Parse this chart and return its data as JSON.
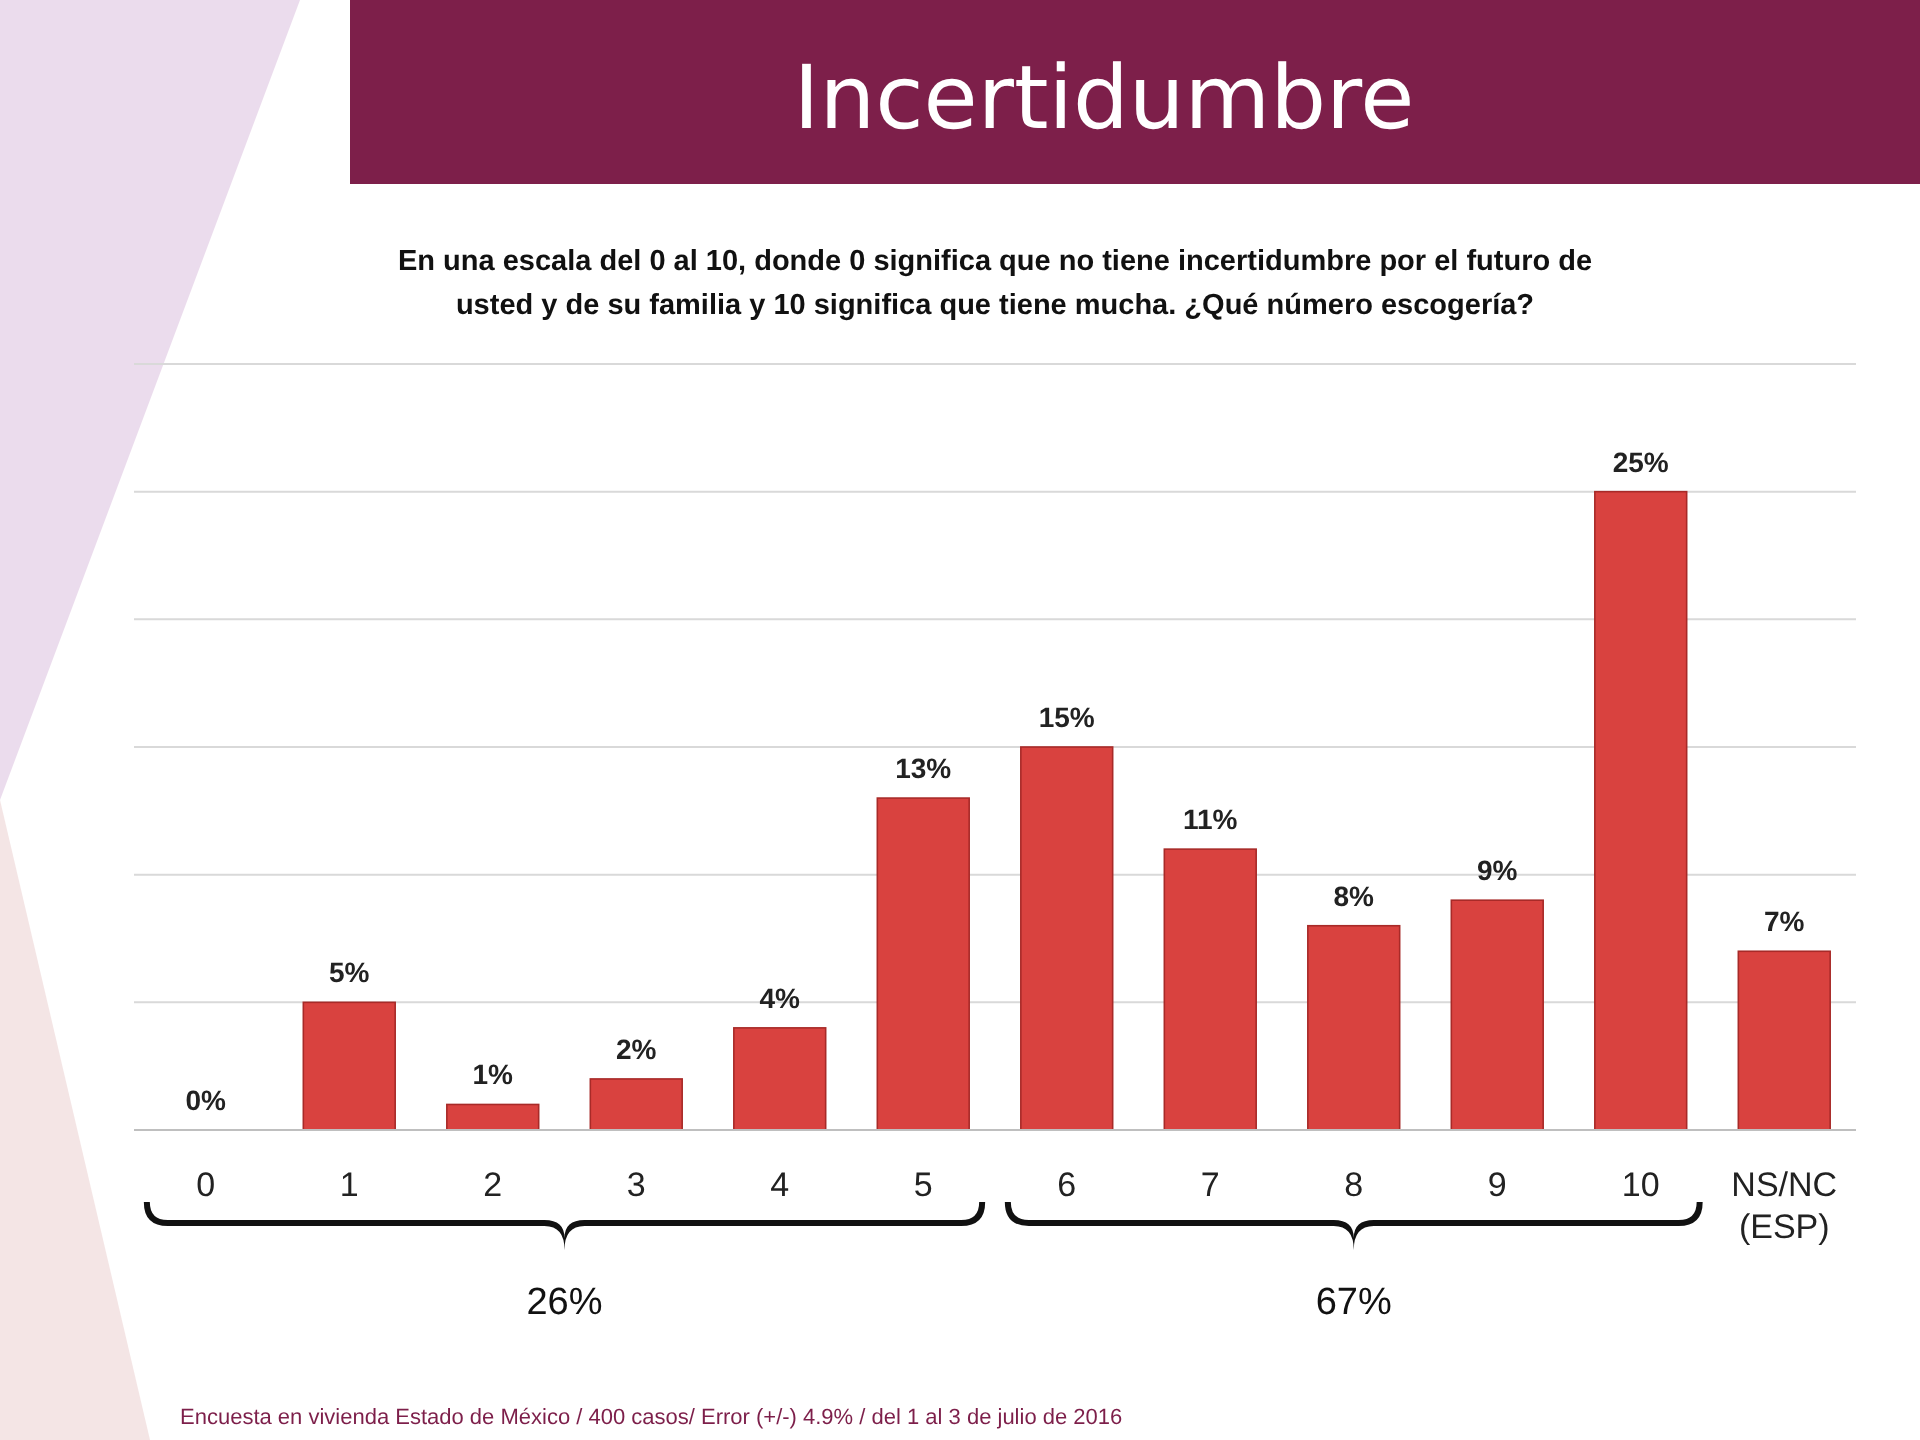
{
  "chart_data": {
    "type": "bar",
    "title": "Incertidumbre",
    "subtitle": "En una escala del 0 al 10, donde 0 significa que no tiene incertidumbre por el futuro de usted y de su familia y 10 significa que tiene mucha.  ¿Qué número escogería?",
    "categories": [
      "0",
      "1",
      "2",
      "3",
      "4",
      "5",
      "6",
      "7",
      "8",
      "9",
      "10",
      "NS/NC (ESP)"
    ],
    "values": [
      0,
      5,
      1,
      2,
      4,
      13,
      15,
      11,
      8,
      9,
      25,
      7
    ],
    "color": "#d9423f",
    "data_labels": true,
    "value_labels": [
      "0%",
      "5%",
      "1%",
      "2%",
      "4%",
      "13%",
      "15%",
      "11%",
      "8%",
      "9%",
      "25%",
      "7%"
    ],
    "ylim": [
      0,
      30
    ],
    "yticks": [
      {
        "value": 0,
        "label": null
      },
      {
        "value": 5,
        "label": null
      },
      {
        "value": 10,
        "label": null
      },
      {
        "value": 15,
        "label": null
      },
      {
        "value": 20,
        "label": null
      },
      {
        "value": 25,
        "label": null
      },
      {
        "value": 30,
        "label": null
      }
    ],
    "grid": "y",
    "tick_labels": "x",
    "annotations": [
      "26%",
      "67%",
      "Encuesta en vivienda Estado de México / 400 casos/ Error (+/-) 4.9%  / del 1 al 3 de julio de 2016"
    ]
  }
}
